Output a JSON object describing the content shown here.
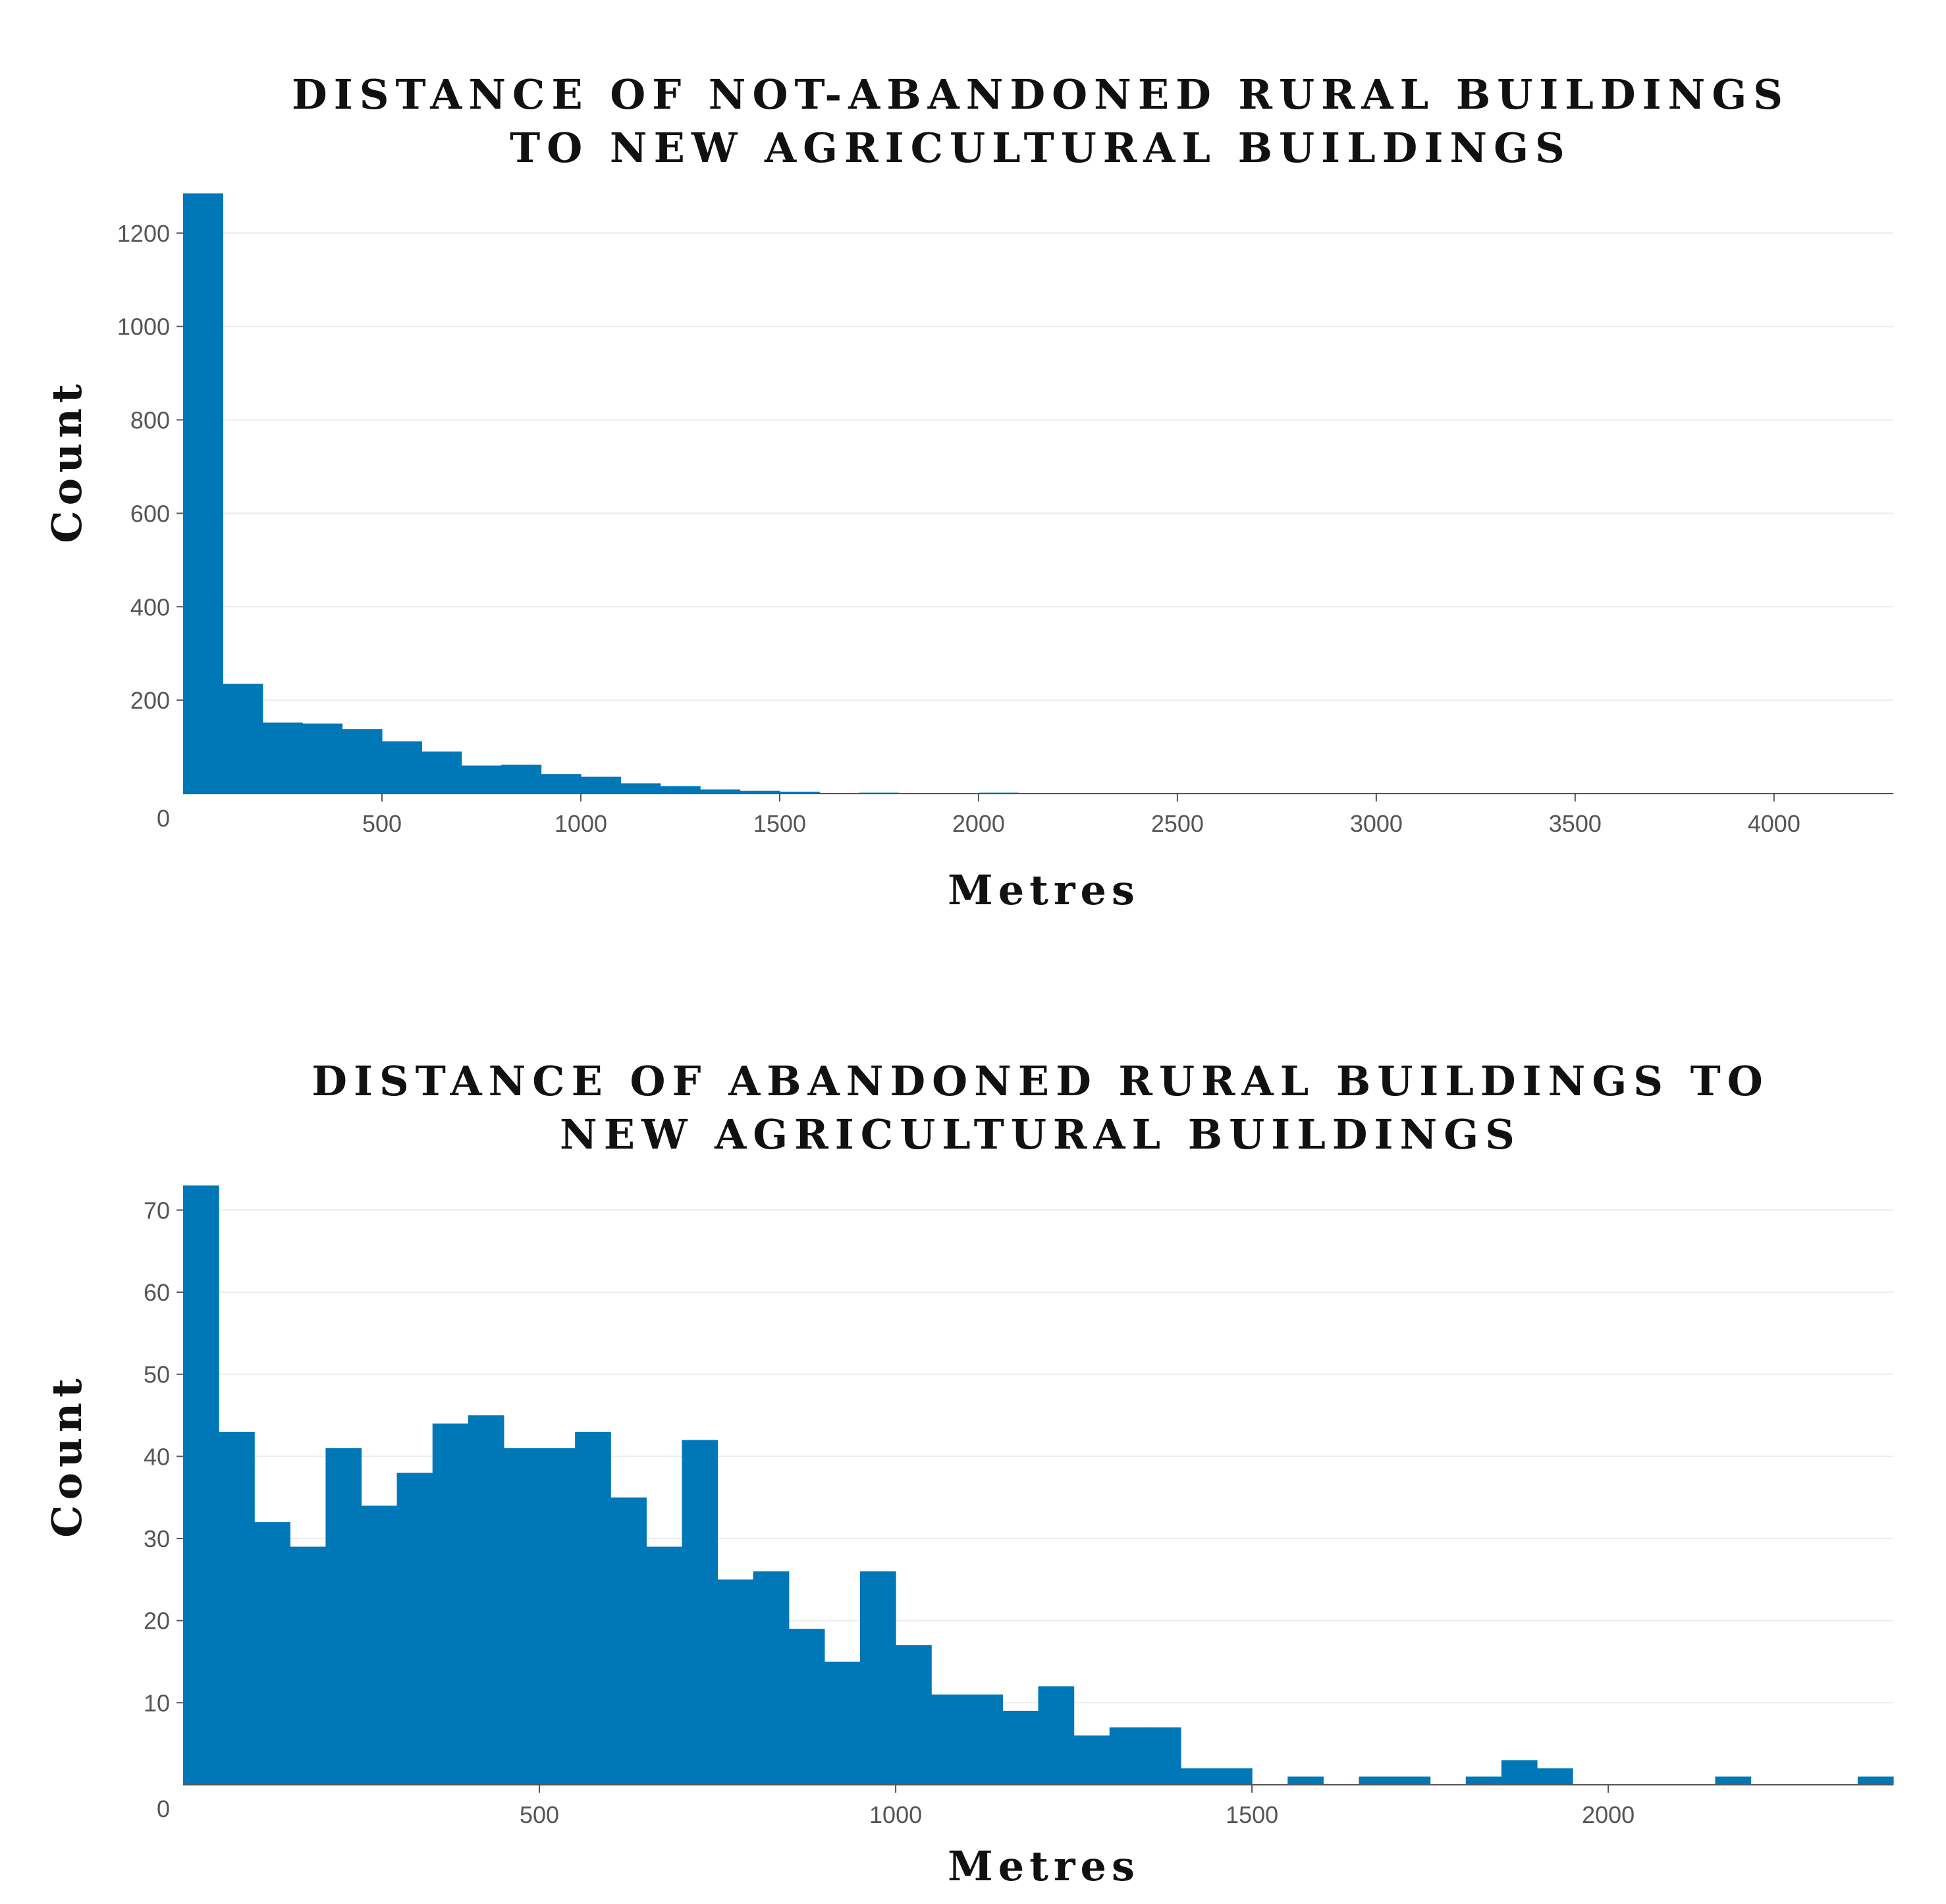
{
  "chart_data": [
    {
      "type": "bar",
      "title_lines": [
        "DISTANCE OF NOT-ABANDONED RURAL BUILDINGS",
        "TO NEW AGRICULTURAL BUILDINGS"
      ],
      "xlabel": "Metres",
      "ylabel": "Count",
      "bin_width": 100,
      "xlim": [
        0,
        4300
      ],
      "ylim": [
        0,
        1290
      ],
      "x_ticks": [
        500,
        1000,
        1500,
        2000,
        2500,
        3000,
        3500,
        4000
      ],
      "y_ticks": [
        200,
        400,
        600,
        800,
        1000,
        1200
      ],
      "y_zero_label": "0",
      "bins_start": [
        0,
        100,
        200,
        300,
        400,
        500,
        600,
        700,
        800,
        900,
        1000,
        1100,
        1200,
        1300,
        1400,
        1500,
        1600,
        1700,
        1800,
        1900,
        2000,
        2100,
        2200,
        2300,
        2400,
        2500,
        2600,
        2700,
        2800,
        2900,
        3000,
        3100,
        3200,
        3300,
        3400,
        3500,
        3600,
        3700,
        3800,
        3900,
        4000,
        4100,
        4200
      ],
      "values": [
        1285,
        235,
        152,
        150,
        138,
        112,
        90,
        60,
        62,
        42,
        36,
        22,
        16,
        9,
        6,
        4,
        1,
        2,
        1,
        1,
        2,
        1,
        1,
        1,
        1,
        1,
        1,
        1,
        1,
        1,
        1,
        1,
        1,
        1,
        1,
        1,
        1,
        1,
        1,
        1,
        1,
        1,
        1
      ],
      "color": "#0077b6"
    },
    {
      "type": "bar",
      "title_lines": [
        "DISTANCE OF ABANDONED RURAL BUILDINGS TO",
        "NEW AGRICULTURAL BUILDINGS"
      ],
      "xlabel": "Metres",
      "ylabel": "Count",
      "bin_width": 50,
      "xlim": [
        0,
        2400
      ],
      "ylim": [
        0,
        73
      ],
      "x_ticks": [
        500,
        1000,
        1500,
        2000
      ],
      "y_ticks": [
        10,
        20,
        30,
        40,
        50,
        60,
        70
      ],
      "y_zero_label": "0",
      "bins_start": [
        0,
        50,
        100,
        150,
        200,
        250,
        300,
        350,
        400,
        450,
        500,
        550,
        600,
        650,
        700,
        750,
        800,
        850,
        900,
        950,
        1000,
        1050,
        1100,
        1150,
        1200,
        1250,
        1300,
        1350,
        1400,
        1450,
        1500,
        1550,
        1600,
        1650,
        1700,
        1750,
        1800,
        1850,
        1900,
        1950,
        2000,
        2050,
        2100,
        2150,
        2200,
        2250,
        2300,
        2350
      ],
      "values": [
        73,
        43,
        32,
        29,
        41,
        34,
        38,
        44,
        45,
        41,
        41,
        43,
        35,
        29,
        42,
        25,
        26,
        19,
        15,
        26,
        17,
        11,
        11,
        9,
        12,
        6,
        7,
        7,
        2,
        2,
        0,
        1,
        0,
        1,
        1,
        0,
        1,
        3,
        2,
        0,
        0,
        0,
        0,
        1,
        0,
        0,
        0,
        1
      ],
      "color": "#0077b6"
    }
  ]
}
